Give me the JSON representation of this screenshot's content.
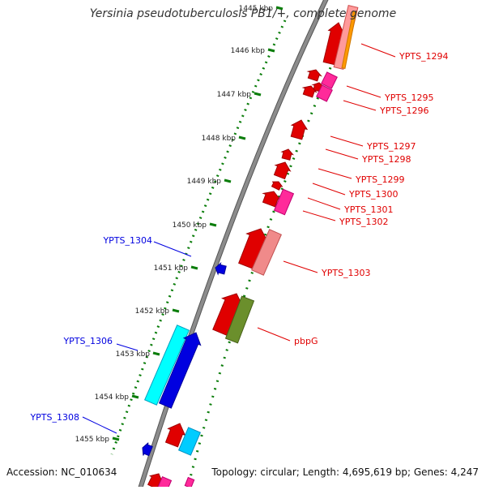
{
  "title": "Yersinia pseudotuberculosis PB1/+, complete genome",
  "footer": {
    "accession": "Accession: NC_010634",
    "stats": "Topology: circular; Length: 4,695,619 bp; Genes: 4,247"
  },
  "colors": {
    "backbone": "#8c8c8c",
    "ticks": "#0a7d0a",
    "forward_gene": "#e00000",
    "forward_label": "#e00000",
    "reverse_gene": "#0000e0",
    "reverse_label": "#0000e0"
  },
  "ticks": [
    "1445 kbp",
    "1446 kbp",
    "1447 kbp",
    "1448 kbp",
    "1449 kbp",
    "1450 kbp",
    "1451 kbp",
    "1452 kbp",
    "1453 kbp",
    "1454 kbp",
    "1455 kbp"
  ],
  "forward_labels": [
    "YPTS_1294",
    "YPTS_1295",
    "YPTS_1296",
    "YPTS_1297",
    "YPTS_1298",
    "YPTS_1299",
    "YPTS_1300",
    "YPTS_1301",
    "YPTS_1302",
    "YPTS_1303",
    "pbpG"
  ],
  "reverse_labels": [
    "YPTS_1304",
    "YPTS_1306",
    "YPTS_1308"
  ]
}
